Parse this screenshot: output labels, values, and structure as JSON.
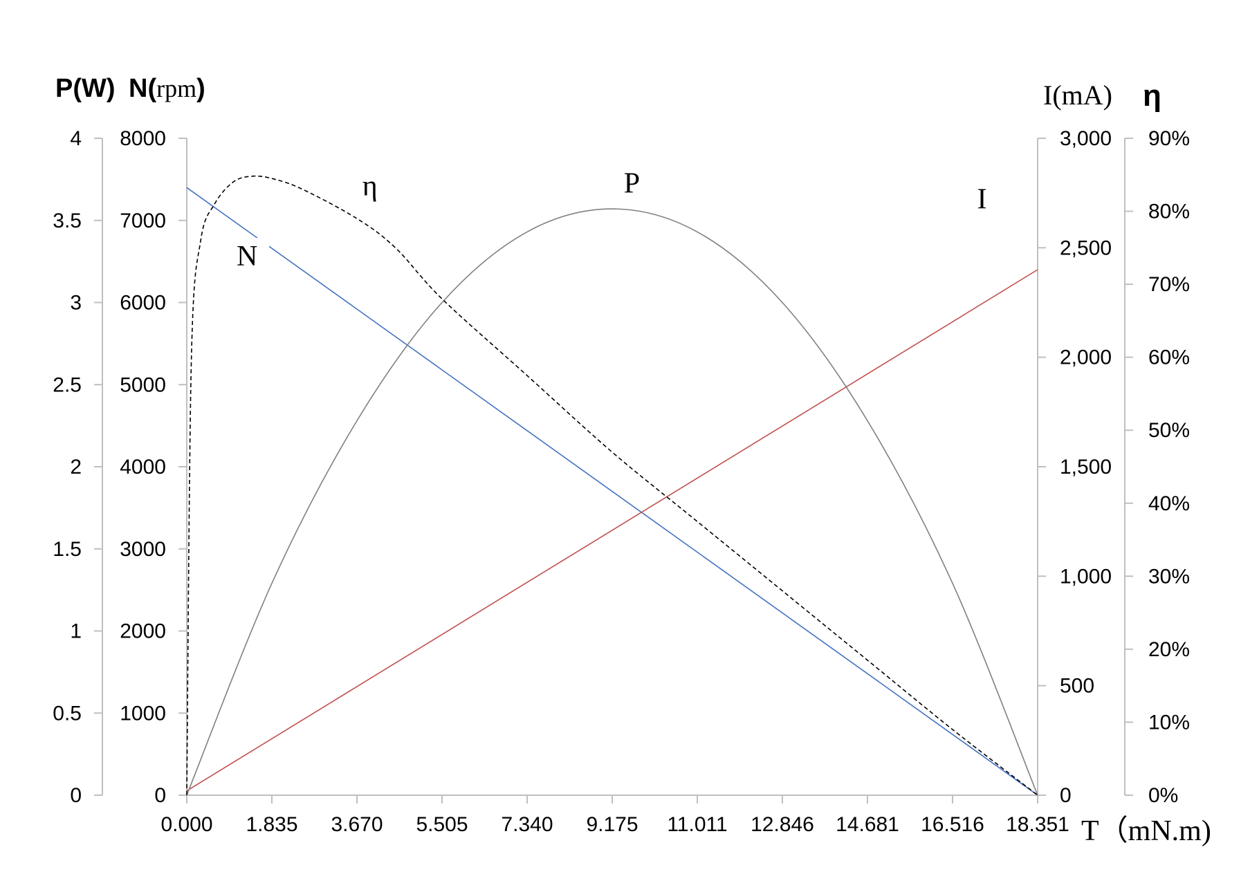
{
  "chart_data": {
    "type": "line",
    "x_axis": {
      "label": "T（mN.m)",
      "ticks": [
        "0.000",
        "1.835",
        "3.670",
        "5.505",
        "7.340",
        "9.175",
        "11.011",
        "12.846",
        "14.681",
        "16.516",
        "18.351"
      ],
      "range": [
        0,
        18.351
      ]
    },
    "axes": {
      "power": {
        "label": "P(W)",
        "ticks": [
          "0",
          "0.5",
          "1",
          "1.5",
          "2",
          "2.5",
          "3",
          "3.5",
          "4"
        ],
        "range": [
          0,
          4
        ]
      },
      "speed": {
        "label_bold": "N(",
        "label_unit": "rpm",
        "label_close": ")",
        "ticks": [
          "0",
          "1000",
          "2000",
          "3000",
          "4000",
          "5000",
          "6000",
          "7000",
          "8000"
        ],
        "range": [
          0,
          8000
        ]
      },
      "current": {
        "label": "I(mA)",
        "ticks": [
          "0",
          "500",
          "1,000",
          "1,500",
          "2,000",
          "2,500",
          "3,000"
        ],
        "range": [
          0,
          3000
        ]
      },
      "efficiency": {
        "label": "η",
        "ticks": [
          "0%",
          "10%",
          "20%",
          "30%",
          "40%",
          "50%",
          "60%",
          "70%",
          "80%",
          "90%"
        ],
        "range": [
          0,
          0.9
        ]
      }
    },
    "series": [
      {
        "name": "N",
        "axis": "speed",
        "color": "#4472c4",
        "style": "solid",
        "points": [
          [
            0,
            7400
          ],
          [
            18.351,
            0
          ]
        ]
      },
      {
        "name": "I",
        "axis": "current",
        "color": "#c0504d",
        "style": "solid",
        "points": [
          [
            0,
            20
          ],
          [
            18.351,
            2400
          ]
        ]
      },
      {
        "name": "P",
        "axis": "power",
        "color": "#808080",
        "style": "solid",
        "points": [
          [
            0,
            0
          ],
          [
            1.835,
            1.29
          ],
          [
            3.67,
            2.28
          ],
          [
            5.505,
            3.0
          ],
          [
            7.34,
            3.43
          ],
          [
            9.175,
            3.57
          ],
          [
            11.011,
            3.43
          ],
          [
            12.846,
            3.0
          ],
          [
            14.681,
            2.28
          ],
          [
            16.516,
            1.29
          ],
          [
            18.351,
            0
          ]
        ]
      },
      {
        "name": "η",
        "axis": "efficiency",
        "color": "#000000",
        "style": "dashed",
        "points": [
          [
            0,
            0
          ],
          [
            0.1,
            0.6
          ],
          [
            0.3,
            0.76
          ],
          [
            0.6,
            0.81
          ],
          [
            1.0,
            0.84
          ],
          [
            1.4,
            0.848
          ],
          [
            1.835,
            0.845
          ],
          [
            2.5,
            0.83
          ],
          [
            3.67,
            0.79
          ],
          [
            4.5,
            0.75
          ],
          [
            5.505,
            0.68
          ],
          [
            7.34,
            0.575
          ],
          [
            9.175,
            0.47
          ],
          [
            11.011,
            0.375
          ],
          [
            12.846,
            0.28
          ],
          [
            14.681,
            0.185
          ],
          [
            16.516,
            0.09
          ],
          [
            18.351,
            0
          ]
        ]
      }
    ],
    "curve_labels": [
      {
        "text": "N",
        "axis": "speed",
        "x": 1.3,
        "y": 6450
      },
      {
        "text": "η",
        "axis": "efficiency",
        "x": 3.95,
        "y": 0.822
      },
      {
        "text": "P",
        "axis": "power",
        "x": 9.6,
        "y": 3.67
      },
      {
        "text": "I",
        "axis": "current",
        "x": 17.15,
        "y": 2680
      }
    ],
    "grid": false
  }
}
